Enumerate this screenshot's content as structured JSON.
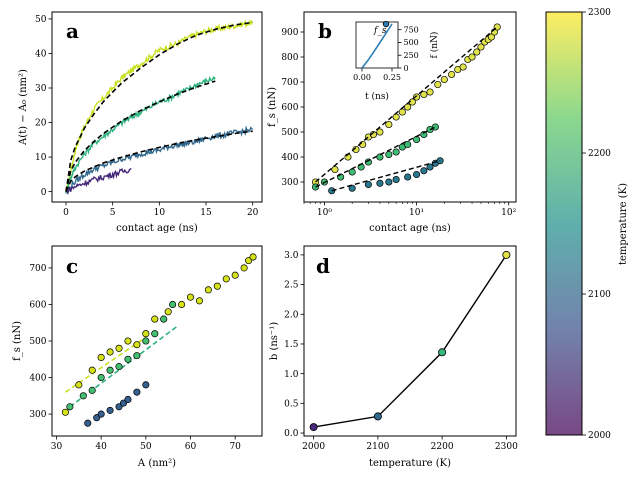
{
  "chart_data": [
    {
      "panel": "a",
      "type": "line",
      "xlabel": "contact age (ns)",
      "ylabel": "A(t) − A₀ (nm²)",
      "xlim": [
        -1.5,
        21
      ],
      "ylim": [
        -3,
        52
      ],
      "xticks": [
        0,
        5,
        10,
        15,
        20
      ],
      "yticks": [
        0,
        10,
        20,
        30,
        40,
        50
      ],
      "series": [
        {
          "name": "2300 K",
          "temperature": 2300,
          "color": "#c8e020",
          "x": [
            0,
            0.5,
            1,
            1.5,
            2,
            3,
            4,
            5,
            6,
            7,
            8,
            9,
            10,
            11,
            12,
            13,
            14,
            15,
            16,
            17,
            18,
            19,
            20
          ],
          "y": [
            0,
            6,
            12,
            16,
            19,
            24,
            27,
            30,
            33,
            35,
            37,
            39,
            41,
            42,
            43,
            44.5,
            45.5,
            46.5,
            47,
            47.5,
            48,
            48.5,
            49
          ]
        },
        {
          "name": "2200 K",
          "temperature": 2200,
          "color": "#2db27d",
          "x": [
            0,
            0.5,
            1,
            2,
            3,
            4,
            5,
            6,
            7,
            8,
            9,
            10,
            11,
            12,
            13,
            14,
            15,
            16
          ],
          "y": [
            0,
            4,
            7,
            11,
            14,
            16,
            18,
            20,
            21.5,
            23,
            24.5,
            26,
            27,
            28.5,
            29.5,
            31,
            32,
            33
          ]
        },
        {
          "name": "2100 K",
          "temperature": 2100,
          "color": "#31688e",
          "x": [
            0,
            1,
            2,
            3,
            4,
            5,
            6,
            7,
            8,
            9,
            10,
            11,
            12,
            13,
            14,
            15,
            16,
            17,
            18,
            19,
            20
          ],
          "y": [
            0,
            3,
            5,
            6.5,
            7.5,
            8.5,
            9.5,
            10,
            11,
            11.5,
            12,
            13,
            13.5,
            14,
            14.5,
            15.5,
            16,
            16.5,
            17,
            17.5,
            18
          ]
        },
        {
          "name": "2000 K",
          "temperature": 2000,
          "color": "#46287a",
          "x": [
            0,
            1,
            2,
            3,
            4,
            5,
            6,
            7
          ],
          "y": [
            0,
            1.5,
            2.5,
            3.5,
            4.2,
            5,
            5.8,
            6.5
          ]
        }
      ],
      "fits": [
        {
          "name": "fit 2300 K",
          "x": [
            0,
            0.5,
            1,
            2,
            3,
            4,
            5,
            6,
            8,
            10,
            12,
            14,
            16,
            18,
            20
          ],
          "y": [
            0,
            9,
            13,
            18.5,
            22.5,
            26,
            28.8,
            31.5,
            35.8,
            39.6,
            42.8,
            45.3,
            47,
            48.2,
            49
          ]
        },
        {
          "name": "fit 2200 K",
          "x": [
            0,
            0.5,
            1,
            2,
            3,
            4,
            6,
            8,
            10,
            12,
            14,
            16
          ],
          "y": [
            0,
            6,
            8.5,
            12,
            14.5,
            16.8,
            20.5,
            23.5,
            26,
            28.3,
            30.3,
            32
          ]
        },
        {
          "name": "fit 2100 K",
          "x": [
            0,
            0.5,
            1,
            2,
            4,
            6,
            8,
            10,
            12,
            14,
            16,
            18,
            20
          ],
          "y": [
            0,
            3,
            4.3,
            6,
            8.3,
            10,
            11.5,
            12.8,
            14,
            15,
            15.9,
            16.8,
            17.5
          ]
        }
      ]
    },
    {
      "panel": "b",
      "type": "scatter",
      "xscale": "log",
      "xlabel": "contact age (ns)",
      "ylabel": "f_s (nN)",
      "xlim": [
        0.6,
        120
      ],
      "ylim": [
        220,
        980
      ],
      "xticks": [
        1,
        10,
        100
      ],
      "xtick_labels": [
        "10⁰",
        "10¹",
        "10²"
      ],
      "yticks": [
        300,
        400,
        500,
        600,
        700,
        800,
        900
      ],
      "series": [
        {
          "name": "2300 K",
          "temperature": 2300,
          "color": "#e1e34c",
          "x": [
            0.8,
            1.3,
            1.8,
            2.2,
            2.6,
            3.0,
            3.4,
            4.0,
            5.0,
            6.0,
            7.0,
            8.0,
            9.0,
            10.0,
            12.0,
            14.0,
            17.0,
            20.0,
            24.0,
            28.0,
            32.0,
            36.0,
            40.0,
            45.0,
            50.0,
            55.0,
            60.0,
            65.0,
            70.0,
            75.0
          ],
          "y": [
            300,
            350,
            400,
            430,
            450,
            480,
            490,
            500,
            530,
            560,
            580,
            600,
            620,
            640,
            650,
            660,
            690,
            710,
            730,
            750,
            760,
            790,
            800,
            820,
            840,
            860,
            870,
            880,
            900,
            920
          ]
        },
        {
          "name": "2200 K",
          "temperature": 2200,
          "color": "#3fbc73",
          "x": [
            0.8,
            1.0,
            1.5,
            2.0,
            2.5,
            3.0,
            4.0,
            5.0,
            6.0,
            7.0,
            8.0,
            10.0,
            12.0,
            14.0,
            16.0
          ],
          "y": [
            280,
            300,
            320,
            340,
            360,
            380,
            400,
            410,
            420,
            440,
            450,
            470,
            490,
            510,
            520
          ]
        },
        {
          "name": "2100 K",
          "temperature": 2100,
          "color": "#2a788e",
          "x": [
            1.2,
            2.0,
            3.0,
            4.0,
            5.0,
            6.0,
            8.0,
            10.0,
            12.0,
            14.0,
            16.0,
            18.0
          ],
          "y": [
            265,
            275,
            290,
            295,
            300,
            310,
            320,
            330,
            345,
            360,
            375,
            385
          ]
        }
      ],
      "inset": {
        "xlabel": "t (ns)",
        "ylabel": "f (nN)",
        "xlim": [
          -0.05,
          0.3
        ],
        "ylim": [
          0,
          900
        ],
        "xticks": [
          0.0,
          0.25
        ],
        "xtick_labels": [
          "0.00",
          "0.25"
        ],
        "yticks": [
          0,
          250,
          500,
          750
        ],
        "annotation": "f_s",
        "line": {
          "x": [
            0.0,
            0.05,
            0.1,
            0.15,
            0.2,
            0.25
          ],
          "y": [
            0,
            150,
            320,
            500,
            680,
            860
          ]
        },
        "peak": {
          "x": 0.2,
          "y": 860
        }
      }
    },
    {
      "panel": "c",
      "type": "scatter",
      "xlabel": "A (nm²)",
      "ylabel": "f_s (nN)",
      "xlim": [
        29,
        76
      ],
      "ylim": [
        240,
        760
      ],
      "xticks": [
        30,
        40,
        50,
        60,
        70
      ],
      "yticks": [
        300,
        400,
        500,
        600,
        700
      ],
      "series": [
        {
          "name": "2300 K",
          "temperature": 2300,
          "color": "#d5e21a",
          "x": [
            32,
            35,
            38,
            40,
            42,
            44,
            46,
            48,
            50,
            52,
            55,
            58,
            60,
            62,
            64,
            66,
            68,
            70,
            72,
            73,
            74
          ],
          "y": [
            305,
            380,
            420,
            455,
            470,
            480,
            500,
            490,
            520,
            560,
            580,
            600,
            620,
            610,
            640,
            650,
            670,
            680,
            700,
            720,
            730
          ]
        },
        {
          "name": "2200 K",
          "temperature": 2200,
          "color": "#44bf70",
          "x": [
            33,
            36,
            38,
            40,
            42,
            44,
            46,
            48,
            50,
            52,
            54,
            56
          ],
          "y": [
            320,
            350,
            365,
            400,
            420,
            430,
            450,
            460,
            500,
            520,
            560,
            600
          ]
        },
        {
          "name": "2100 K",
          "temperature": 2100,
          "color": "#355f8d",
          "x": [
            37,
            39,
            40,
            42,
            44,
            45,
            46,
            48,
            50
          ],
          "y": [
            275,
            290,
            300,
            310,
            320,
            330,
            340,
            360,
            380
          ]
        }
      ],
      "fits": [
        {
          "name": "fit 2300 K",
          "color": "#c8e020",
          "x": [
            32,
            50
          ],
          "y": [
            360,
            510
          ]
        },
        {
          "name": "fit 2200 K",
          "color": "#2db27d",
          "x": [
            33,
            57
          ],
          "y": [
            320,
            540
          ]
        }
      ]
    },
    {
      "panel": "d",
      "type": "line",
      "xlabel": "temperature (K)",
      "ylabel": "b (ns⁻¹)",
      "xlim": [
        1985,
        2315
      ],
      "ylim": [
        -0.05,
        3.15
      ],
      "xticks": [
        2000,
        2100,
        2200,
        2300
      ],
      "yticks": [
        0.0,
        0.5,
        1.0,
        1.5,
        2.0,
        2.5,
        3.0
      ],
      "ytick_labels": [
        "0.0",
        "0.5",
        "1.0",
        "1.5",
        "2.0",
        "2.5",
        "3.0"
      ],
      "x": [
        2000,
        2100,
        2200,
        2300
      ],
      "y": [
        0.1,
        0.28,
        1.36,
        3.0
      ],
      "marker_colors": [
        "#46287a",
        "#31688e",
        "#35b779",
        "#e4e24a"
      ]
    }
  ],
  "colorbar": {
    "label": "temperature (K)",
    "min": 2000,
    "max": 2300,
    "ticks": [
      2000,
      2100,
      2200,
      2300
    ],
    "stops": [
      "#440154",
      "#3b528b",
      "#21918c",
      "#5ec962",
      "#fde725"
    ]
  }
}
